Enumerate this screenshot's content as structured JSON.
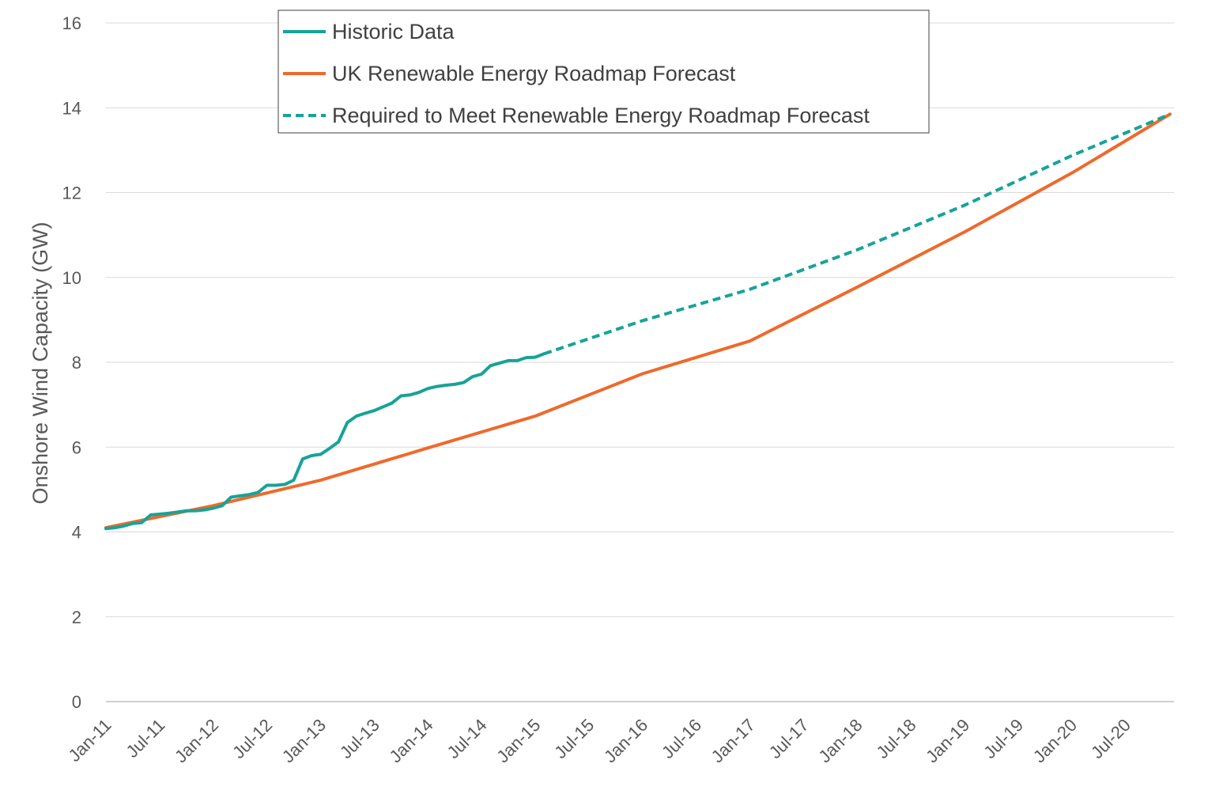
{
  "chart_data": {
    "type": "line",
    "title": "",
    "xlabel": "",
    "ylabel": "Onshore Wind Capacity (GW)",
    "ylim": [
      0,
      16
    ],
    "yticks": [
      0,
      2,
      4,
      6,
      8,
      10,
      12,
      14,
      16
    ],
    "xlim": [
      "2011-01",
      "2020-12"
    ],
    "xtick_labels": [
      "Jan-11",
      "Jul-11",
      "Jan-12",
      "Jul-12",
      "Jan-13",
      "Jul-13",
      "Jan-14",
      "Jul-14",
      "Jan-15",
      "Jul-15",
      "Jan-16",
      "Jul-16",
      "Jan-17",
      "Jul-17",
      "Jan-18",
      "Jul-18",
      "Jan-19",
      "Jul-19",
      "Jan-20",
      "Jul-20"
    ],
    "grid": "horizontal",
    "legend_position": "top",
    "colors": {
      "historic": "#17A398",
      "forecast": "#EE6A2C",
      "required": "#17A398"
    },
    "series": [
      {
        "name": "Historic Data",
        "style": "solid",
        "color": "#17A398",
        "x": [
          "2011-01",
          "2011-02",
          "2011-03",
          "2011-04",
          "2011-05",
          "2011-06",
          "2011-07",
          "2011-08",
          "2011-09",
          "2011-10",
          "2011-11",
          "2011-12",
          "2012-01",
          "2012-02",
          "2012-03",
          "2012-04",
          "2012-05",
          "2012-06",
          "2012-07",
          "2012-08",
          "2012-09",
          "2012-10",
          "2012-11",
          "2012-12",
          "2013-01",
          "2013-02",
          "2013-03",
          "2013-04",
          "2013-05",
          "2013-06",
          "2013-07",
          "2013-08",
          "2013-09",
          "2013-10",
          "2013-11",
          "2013-12",
          "2014-01",
          "2014-02",
          "2014-03",
          "2014-04",
          "2014-05",
          "2014-06",
          "2014-07",
          "2014-08",
          "2014-09",
          "2014-10",
          "2014-11",
          "2014-12",
          "2015-01",
          "2015-02"
        ],
        "values": [
          4.08,
          4.1,
          4.14,
          4.2,
          4.22,
          4.4,
          4.42,
          4.44,
          4.47,
          4.5,
          4.5,
          4.52,
          4.56,
          4.62,
          4.82,
          4.85,
          4.88,
          4.93,
          5.1,
          5.1,
          5.12,
          5.22,
          5.72,
          5.8,
          5.83,
          5.97,
          6.12,
          6.58,
          6.73,
          6.8,
          6.86,
          6.95,
          7.04,
          7.21,
          7.23,
          7.29,
          7.38,
          7.43,
          7.46,
          7.48,
          7.52,
          7.66,
          7.72,
          7.92,
          7.98,
          8.04,
          8.04,
          8.11,
          8.12,
          8.2
        ]
      },
      {
        "name": "UK Renewable Energy Roadmap Forecast",
        "style": "solid",
        "color": "#EE6A2C",
        "x": [
          "2011-01",
          "2012-01",
          "2013-01",
          "2014-01",
          "2015-01",
          "2016-01",
          "2017-01",
          "2018-01",
          "2019-01",
          "2020-01",
          "2020-12"
        ],
        "values": [
          4.1,
          4.62,
          5.22,
          5.98,
          6.73,
          7.73,
          8.5,
          9.77,
          11.07,
          12.46,
          13.85
        ]
      },
      {
        "name": "Required to Meet Renewable Energy Roadmap Forecast",
        "style": "dashed",
        "color": "#17A398",
        "x": [
          "2015-02",
          "2016-01",
          "2017-01",
          "2018-01",
          "2019-01",
          "2020-01",
          "2020-12"
        ],
        "values": [
          8.2,
          8.98,
          9.72,
          10.65,
          11.7,
          12.87,
          13.85
        ]
      }
    ]
  }
}
